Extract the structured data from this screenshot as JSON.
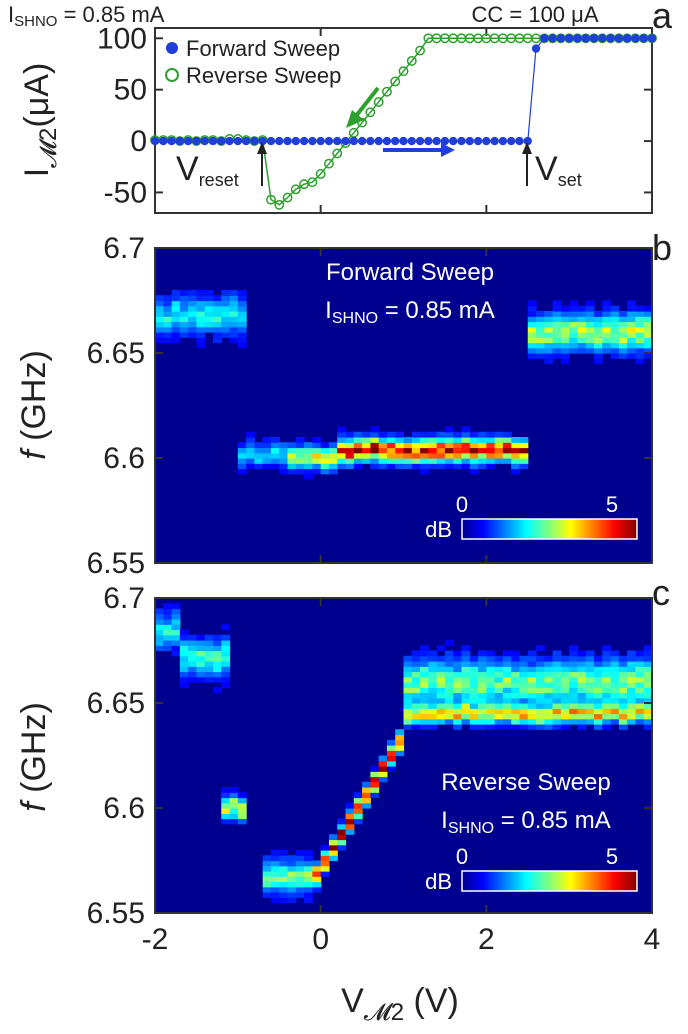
{
  "annotations": {
    "ishno_top_main": "I",
    "ishno_top_sub": "SHNO",
    "ishno_top_rest": " = 0.85 mA",
    "cc": "CC = 100 μA",
    "vreset_main": "V",
    "vreset_sub": "reset",
    "vset_main": "V",
    "vset_sub": "set",
    "panel_a": "a",
    "panel_b": "b",
    "panel_c": "c",
    "forward_title": "Forward Sweep",
    "reverse_title": "Reverse Sweep",
    "ishno_main": "I",
    "ishno_sub": "SHNO",
    "ishno_rest": " = 0.85 mA",
    "colorbar_unit": "dB",
    "colorbar_min": "0",
    "colorbar_max": "5"
  },
  "chart_data": [
    {
      "type": "line",
      "panel": "a",
      "ylabel_main": "I",
      "ylabel_sub": "𝓜2",
      "ylabel_rest": "(μA)",
      "xlim": [
        -2,
        4
      ],
      "ylim": [
        -70,
        110
      ],
      "yticks": [
        "100",
        "50",
        "0",
        "-50"
      ],
      "ytick_values": [
        100,
        50,
        0,
        -50
      ],
      "legend": "top-left",
      "series": [
        {
          "name": "Forward Sweep",
          "color": "#1f3fd8",
          "marker": "filled-circle",
          "x": [
            -2.0,
            -1.9,
            -1.8,
            -1.7,
            -1.6,
            -1.5,
            -1.4,
            -1.3,
            -1.2,
            -1.1,
            -1.0,
            -0.9,
            -0.8,
            -0.7,
            -0.6,
            -0.5,
            -0.4,
            -0.3,
            -0.2,
            -0.1,
            0.0,
            0.1,
            0.2,
            0.3,
            0.4,
            0.5,
            0.6,
            0.7,
            0.8,
            0.9,
            1.0,
            1.1,
            1.2,
            1.3,
            1.4,
            1.5,
            1.6,
            1.7,
            1.8,
            1.9,
            2.0,
            2.1,
            2.2,
            2.3,
            2.4,
            2.5,
            2.6,
            2.7,
            2.8,
            2.9,
            3.0,
            3.1,
            3.2,
            3.3,
            3.4,
            3.5,
            3.6,
            3.7,
            3.8,
            3.9,
            4.0
          ],
          "y": [
            0,
            0,
            0,
            0,
            0,
            0,
            0,
            0,
            0,
            0,
            0,
            0,
            0,
            0,
            0,
            0,
            0,
            0,
            0,
            0,
            0,
            0,
            0,
            0,
            0,
            0,
            0,
            0,
            0,
            0,
            0,
            0,
            0,
            0,
            0,
            0,
            0,
            0,
            0,
            0,
            0,
            0,
            0,
            0,
            0,
            0,
            90,
            100,
            100,
            100,
            100,
            100,
            100,
            100,
            100,
            100,
            100,
            100,
            100,
            100,
            100
          ]
        },
        {
          "name": "Reverse Sweep",
          "color": "#2ca02c",
          "marker": "open-circle",
          "x": [
            -2.0,
            -1.9,
            -1.8,
            -1.7,
            -1.6,
            -1.5,
            -1.4,
            -1.3,
            -1.2,
            -1.1,
            -1.0,
            -0.9,
            -0.8,
            -0.7,
            -0.6,
            -0.5,
            -0.4,
            -0.3,
            -0.2,
            -0.1,
            0.0,
            0.1,
            0.2,
            0.3,
            0.4,
            0.5,
            0.6,
            0.7,
            0.8,
            0.9,
            1.0,
            1.1,
            1.2,
            1.3,
            1.4,
            1.5,
            1.6,
            1.7,
            1.8,
            1.9,
            2.0,
            2.1,
            2.2,
            2.3,
            2.4,
            2.5,
            2.6,
            2.7,
            2.8,
            2.9,
            3.0,
            3.1,
            3.2,
            3.3,
            3.4,
            3.5,
            3.6,
            3.7,
            3.8,
            3.9,
            4.0
          ],
          "y": [
            1,
            1,
            1,
            0,
            1,
            0,
            1,
            1,
            0,
            2,
            2,
            1,
            0,
            1,
            -57,
            -62,
            -55,
            -47,
            -42,
            -40,
            -32,
            -22,
            -12,
            -2,
            8,
            18,
            28,
            38,
            48,
            58,
            68,
            78,
            88,
            100,
            100,
            100,
            100,
            100,
            100,
            100,
            100,
            100,
            100,
            100,
            100,
            100,
            100,
            100,
            100,
            100,
            100,
            100,
            100,
            100,
            100,
            100,
            100,
            100,
            100,
            100,
            100
          ]
        }
      ]
    },
    {
      "type": "heatmap",
      "panel": "b",
      "title": "Forward Sweep",
      "ylabel_main": "f",
      "ylabel_rest": " (GHz)",
      "xlim": [
        -2,
        4
      ],
      "ylim": [
        6.55,
        6.7
      ],
      "yticks": [
        "6.7",
        "6.65",
        "6.6",
        "6.55"
      ],
      "ytick_values": [
        6.7,
        6.65,
        6.6,
        6.55
      ],
      "colorbar": {
        "label": "dB",
        "min": 0,
        "max": 5
      },
      "features": [
        {
          "x_start": -2.0,
          "x_end": -0.9,
          "f_center": 6.668,
          "f_width": 0.008,
          "level": 0.3
        },
        {
          "x_start": -1.0,
          "x_end": -0.4,
          "f_center": 6.602,
          "f_width": 0.005,
          "level": 0.25
        },
        {
          "x_start": -0.4,
          "x_end": 0.2,
          "f_center": 6.6,
          "f_width": 0.005,
          "level": 0.5
        },
        {
          "x_start": 0.2,
          "x_end": 2.45,
          "f_center": 6.604,
          "f_width": 0.005,
          "level": 0.8
        },
        {
          "x_start": 2.55,
          "x_end": 4.0,
          "f_center": 6.66,
          "f_width": 0.008,
          "level": 0.45
        }
      ]
    },
    {
      "type": "heatmap",
      "panel": "c",
      "title": "Reverse Sweep",
      "ylabel_main": "f",
      "ylabel_rest": " (GHz)",
      "xlabel_main": "V",
      "xlabel_sub": "𝓜2",
      "xlabel_rest": " (V)",
      "xlim": [
        -2,
        4
      ],
      "ylim": [
        6.55,
        6.7
      ],
      "xticks": [
        "-2",
        "0",
        "2",
        "4"
      ],
      "xtick_values": [
        -2,
        0,
        2,
        4
      ],
      "yticks": [
        "6.7",
        "6.65",
        "6.6",
        "6.55"
      ],
      "ytick_values": [
        6.7,
        6.65,
        6.6,
        6.55
      ],
      "colorbar": {
        "label": "dB",
        "min": 0,
        "max": 5
      },
      "features": [
        {
          "x_start": -2.0,
          "x_end": -1.7,
          "f_center": 6.685,
          "f_width": 0.008,
          "level": 0.3
        },
        {
          "x_start": -1.7,
          "x_end": -1.1,
          "f_center": 6.672,
          "f_width": 0.008,
          "level": 0.35
        },
        {
          "x_start": -1.2,
          "x_end": -0.9,
          "f_center": 6.6,
          "f_width": 0.005,
          "level": 0.5
        },
        {
          "x_start": -0.7,
          "x_end": -0.1,
          "f_center": 6.567,
          "f_width": 0.007,
          "level": 0.4
        },
        {
          "x_start": -0.1,
          "x_end": 1.05,
          "f_start": 6.565,
          "f_end": 6.638,
          "f_width": 0.004,
          "level": 0.9
        },
        {
          "x_start": 1.05,
          "x_end": 4.0,
          "f_center": 6.66,
          "f_width": 0.01,
          "level": 0.4
        },
        {
          "x_start": 1.05,
          "x_end": 4.0,
          "f_center": 6.645,
          "f_width": 0.004,
          "level": 0.55
        }
      ]
    }
  ]
}
